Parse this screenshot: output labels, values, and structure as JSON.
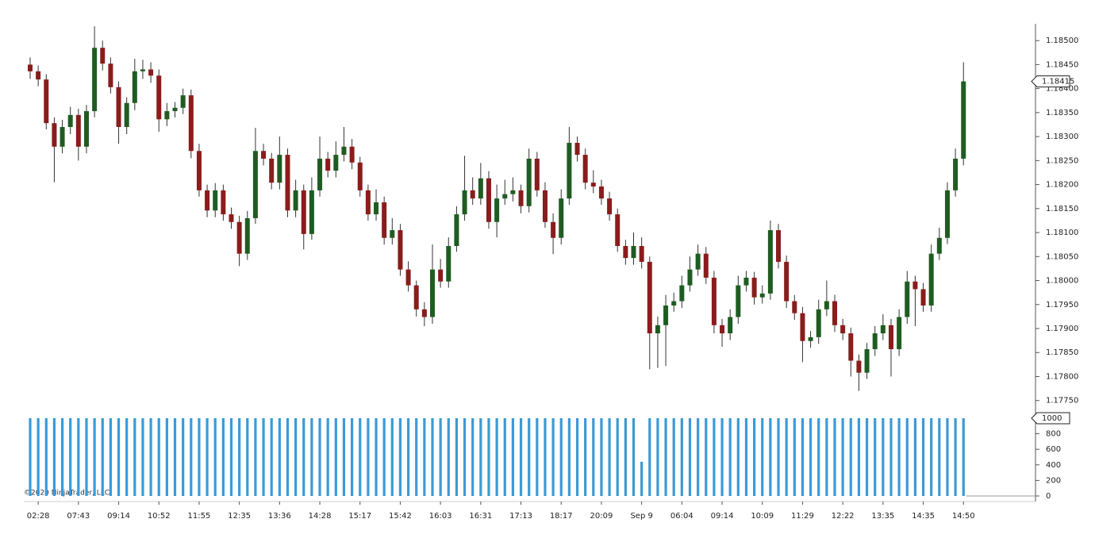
{
  "chart_data": {
    "type": "candlestick",
    "copyright": "©2020 NinjaTrader, LLC",
    "color_up": "#1f5c22",
    "color_down": "#8a1c1c",
    "categories": [
      null,
      "02:28",
      null,
      null,
      null,
      null,
      "07:43",
      null,
      null,
      null,
      null,
      "09:14",
      null,
      null,
      null,
      null,
      "10:52",
      null,
      null,
      null,
      null,
      "11:55",
      null,
      null,
      null,
      null,
      "12:35",
      null,
      null,
      null,
      null,
      "13:36",
      null,
      null,
      null,
      null,
      "14:28",
      null,
      null,
      null,
      null,
      "15:17",
      null,
      null,
      null,
      null,
      "15:42",
      null,
      null,
      null,
      null,
      "16:03",
      null,
      null,
      null,
      null,
      "16:31",
      null,
      null,
      null,
      null,
      "17:13",
      null,
      null,
      null,
      null,
      "18:17",
      null,
      null,
      null,
      null,
      "20:09",
      null,
      null,
      null,
      null,
      "Sep 9",
      null,
      null,
      null,
      null,
      "06:04",
      null,
      null,
      null,
      null,
      "09:14",
      null,
      null,
      null,
      null,
      "10:09",
      null,
      null,
      null,
      null,
      "11:29",
      null,
      null,
      null,
      null,
      "12:22",
      null,
      null,
      null,
      null,
      "13:35",
      null,
      null,
      null,
      null,
      "14:35",
      null,
      null,
      null,
      null,
      "14:50"
    ],
    "open": [
      1.1845,
      1.18436,
      1.18419,
      1.18328,
      1.18279,
      1.1832,
      1.18345,
      1.18279,
      1.18353,
      1.18485,
      1.18452,
      1.18403,
      1.1832,
      1.1837,
      1.18436,
      1.1844,
      1.18427,
      1.18336,
      1.18353,
      1.1836,
      1.18386,
      1.1827,
      1.18188,
      1.18146,
      1.18188,
      1.18138,
      1.18122,
      1.18056,
      1.1813,
      1.1827,
      1.18254,
      1.18204,
      1.18262,
      1.18146,
      1.18188,
      1.18097,
      1.18188,
      1.18254,
      1.18229,
      1.18262,
      1.18279,
      1.18246,
      1.18188,
      1.18138,
      1.18163,
      1.18089,
      1.18105,
      1.18023,
      1.1799,
      1.1794,
      1.17924,
      1.18023,
      1.17998,
      1.18072,
      1.18138,
      1.18188,
      1.18171,
      1.18213,
      1.18122,
      1.18171,
      1.1818,
      1.18188,
      1.18155,
      1.18254,
      1.18188,
      1.18122,
      1.18089,
      1.18171,
      1.18287,
      1.18262,
      1.18204,
      1.18196,
      1.18171,
      1.18138,
      1.18072,
      1.18047,
      1.18072,
      1.18039,
      1.1789,
      1.17907,
      1.17948,
      1.17957,
      1.1799,
      1.18023,
      1.18056,
      1.18006,
      1.17907,
      1.1789,
      1.17924,
      1.1799,
      1.18006,
      1.17965,
      1.17973,
      1.18105,
      1.18039,
      1.17957,
      1.17932,
      1.17874,
      1.17882,
      1.1794,
      1.17957,
      1.17907,
      1.1789,
      1.17833,
      1.17808,
      1.17857,
      1.1789,
      1.17907,
      1.17857,
      1.17924,
      1.17998,
      1.17982,
      1.17948,
      1.18056,
      1.18089,
      1.18188,
      1.18254
    ],
    "high": [
      1.18465,
      1.18448,
      1.1843,
      1.1834,
      1.18335,
      1.18362,
      1.18358,
      1.18366,
      1.1853,
      1.185,
      1.18465,
      1.18415,
      1.18382,
      1.18462,
      1.1846,
      1.18455,
      1.1844,
      1.1837,
      1.18372,
      1.184,
      1.18398,
      1.18285,
      1.182,
      1.18203,
      1.182,
      1.18152,
      1.18135,
      1.18145,
      1.18318,
      1.18285,
      1.18266,
      1.183,
      1.18275,
      1.1821,
      1.182,
      1.18215,
      1.183,
      1.18268,
      1.1829,
      1.1832,
      1.18295,
      1.18258,
      1.182,
      1.1819,
      1.18175,
      1.1813,
      1.18118,
      1.1804,
      1.18,
      1.17955,
      1.18075,
      1.18045,
      1.1809,
      1.18155,
      1.1826,
      1.18215,
      1.18245,
      1.18228,
      1.182,
      1.1821,
      1.18215,
      1.182,
      1.18275,
      1.18268,
      1.18205,
      1.1814,
      1.1819,
      1.1832,
      1.183,
      1.18275,
      1.1823,
      1.1821,
      1.18185,
      1.1815,
      1.18085,
      1.181,
      1.1809,
      1.1805,
      1.17925,
      1.1797,
      1.17975,
      1.1801,
      1.1805,
      1.18075,
      1.1807,
      1.1802,
      1.1792,
      1.1794,
      1.1801,
      1.1802,
      1.18018,
      1.1799,
      1.18125,
      1.18118,
      1.18052,
      1.1797,
      1.17945,
      1.17895,
      1.1796,
      1.18,
      1.1797,
      1.1792,
      1.17902,
      1.17846,
      1.1787,
      1.17905,
      1.1793,
      1.1792,
      1.1794,
      1.1802,
      1.1801,
      1.17995,
      1.18075,
      1.1811,
      1.18205,
      1.18275,
      1.18455
    ],
    "low": [
      1.1842,
      1.18405,
      1.18315,
      1.18205,
      1.18265,
      1.18305,
      1.1825,
      1.18265,
      1.1834,
      1.18438,
      1.1839,
      1.18285,
      1.18305,
      1.18355,
      1.1842,
      1.18412,
      1.1831,
      1.18322,
      1.1834,
      1.18347,
      1.18255,
      1.18175,
      1.18132,
      1.18132,
      1.18125,
      1.18108,
      1.1803,
      1.18043,
      1.18118,
      1.1824,
      1.1819,
      1.1819,
      1.18132,
      1.18132,
      1.18065,
      1.18085,
      1.18175,
      1.18215,
      1.18215,
      1.18248,
      1.18232,
      1.18175,
      1.18125,
      1.18125,
      1.18075,
      1.18075,
      1.1801,
      1.17977,
      1.17925,
      1.17905,
      1.1791,
      1.17985,
      1.17985,
      1.1806,
      1.18125,
      1.18158,
      1.18158,
      1.18108,
      1.1809,
      1.18158,
      1.18165,
      1.1814,
      1.18142,
      1.18175,
      1.1811,
      1.18055,
      1.18075,
      1.18158,
      1.18248,
      1.1819,
      1.18182,
      1.18158,
      1.18125,
      1.1806,
      1.18033,
      1.18033,
      1.18025,
      1.17815,
      1.17818,
      1.17822,
      1.17935,
      1.17943,
      1.17977,
      1.1801,
      1.17993,
      1.1789,
      1.17862,
      1.17876,
      1.1791,
      1.17977,
      1.1795,
      1.17952,
      1.1796,
      1.18025,
      1.17943,
      1.17918,
      1.1783,
      1.1786,
      1.17868,
      1.17926,
      1.17893,
      1.17876,
      1.178,
      1.1777,
      1.17795,
      1.17843,
      1.17876,
      1.178,
      1.17843,
      1.1791,
      1.17905,
      1.17935,
      1.17935,
      1.18043,
      1.18076,
      1.18175,
      1.1824
    ],
    "close": [
      1.18436,
      1.18419,
      1.18328,
      1.18279,
      1.1832,
      1.18345,
      1.18279,
      1.18353,
      1.18485,
      1.18452,
      1.18403,
      1.1832,
      1.1837,
      1.18436,
      1.1844,
      1.18427,
      1.18336,
      1.18353,
      1.1836,
      1.18386,
      1.1827,
      1.18188,
      1.18146,
      1.18188,
      1.18138,
      1.18122,
      1.18056,
      1.1813,
      1.1827,
      1.18254,
      1.18204,
      1.18262,
      1.18146,
      1.18188,
      1.18097,
      1.18188,
      1.18254,
      1.18229,
      1.18262,
      1.18279,
      1.18246,
      1.18188,
      1.18138,
      1.18163,
      1.18089,
      1.18105,
      1.18023,
      1.1799,
      1.1794,
      1.17924,
      1.18023,
      1.17998,
      1.18072,
      1.18138,
      1.18188,
      1.18171,
      1.18213,
      1.18122,
      1.18171,
      1.1818,
      1.18188,
      1.18155,
      1.18254,
      1.18188,
      1.18122,
      1.18089,
      1.18171,
      1.18287,
      1.18262,
      1.18204,
      1.18196,
      1.18171,
      1.18138,
      1.18072,
      1.18047,
      1.18072,
      1.18039,
      1.1789,
      1.17907,
      1.17948,
      1.17957,
      1.1799,
      1.18023,
      1.18056,
      1.18006,
      1.17907,
      1.1789,
      1.17924,
      1.1799,
      1.18006,
      1.17965,
      1.17973,
      1.18105,
      1.18039,
      1.17957,
      1.17932,
      1.17874,
      1.17882,
      1.1794,
      1.17957,
      1.17907,
      1.1789,
      1.17833,
      1.17808,
      1.17857,
      1.1789,
      1.17907,
      1.17857,
      1.17924,
      1.17998,
      1.17982,
      1.17948,
      1.18056,
      1.18089,
      1.18188,
      1.18254,
      1.18415
    ],
    "ylim": [
      1.17733,
      1.18535
    ],
    "yticks": [
      {
        "value": 1.1775,
        "label": "1.17750"
      },
      {
        "value": 1.178,
        "label": "1.17800"
      },
      {
        "value": 1.1785,
        "label": "1.17850"
      },
      {
        "value": 1.179,
        "label": "1.17900"
      },
      {
        "value": 1.1795,
        "label": "1.17950"
      },
      {
        "value": 1.18,
        "label": "1.18000"
      },
      {
        "value": 1.1805,
        "label": "1.18050"
      },
      {
        "value": 1.181,
        "label": "1.18100"
      },
      {
        "value": 1.1815,
        "label": "1.18150"
      },
      {
        "value": 1.182,
        "label": "1.18200"
      },
      {
        "value": 1.1825,
        "label": "1.18250"
      },
      {
        "value": 1.183,
        "label": "1.18300"
      },
      {
        "value": 1.1835,
        "label": "1.18350"
      },
      {
        "value": 1.184,
        "label": "1.18400"
      },
      {
        "value": 1.1845,
        "label": "1.18450"
      },
      {
        "value": 1.185,
        "label": "1.18500"
      }
    ],
    "volume": {
      "color": "#3b9ad8",
      "ylim": [
        0,
        1071
      ],
      "yticks": [
        0,
        200,
        400,
        600,
        800
      ],
      "values": [
        1000,
        1000,
        1000,
        1000,
        1000,
        1000,
        1000,
        1000,
        1000,
        1000,
        1000,
        1000,
        1000,
        1000,
        1000,
        1000,
        1000,
        1000,
        1000,
        1000,
        1000,
        1000,
        1000,
        1000,
        1000,
        1000,
        1000,
        1000,
        1000,
        1000,
        1000,
        1000,
        1000,
        1000,
        1000,
        1000,
        1000,
        1000,
        1000,
        1000,
        1000,
        1000,
        1000,
        1000,
        1000,
        1000,
        1000,
        1000,
        1000,
        1000,
        1000,
        1000,
        1000,
        1000,
        1000,
        1000,
        1000,
        1000,
        1000,
        1000,
        1000,
        1000,
        1000,
        1000,
        1000,
        1000,
        1000,
        1000,
        1000,
        1000,
        1000,
        1000,
        1000,
        1000,
        1000,
        1000,
        440,
        1000,
        1000,
        1000,
        1000,
        1000,
        1000,
        1000,
        1000,
        1000,
        1000,
        1000,
        1000,
        1000,
        1000,
        1000,
        1000,
        1000,
        1000,
        1000,
        1000,
        1000,
        1000,
        1000,
        1000,
        1000,
        1000,
        1000,
        1000,
        1000,
        1000,
        1000,
        1000,
        1000,
        1000,
        1000,
        1000,
        1000,
        1000,
        1000,
        1000
      ]
    }
  }
}
